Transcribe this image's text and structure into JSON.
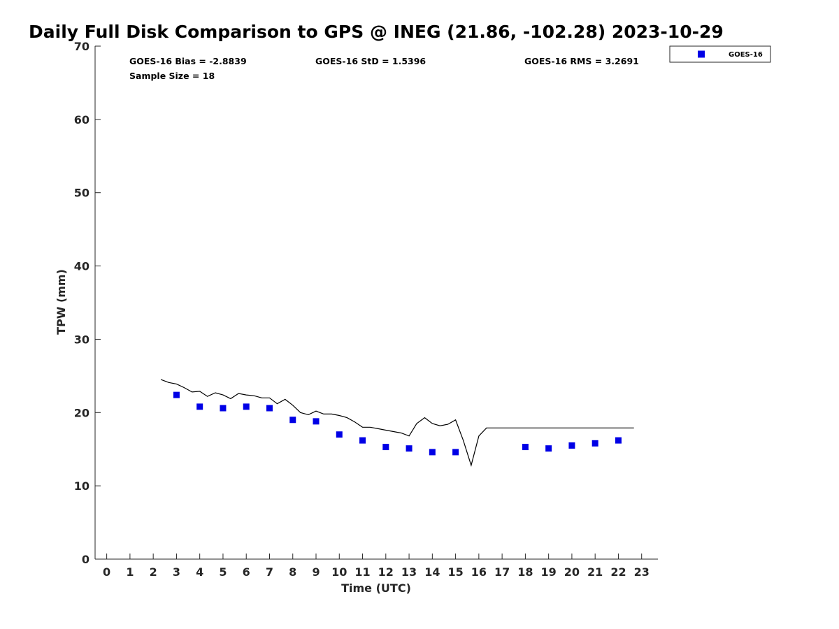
{
  "chart_data": {
    "type": "scatter",
    "title": "Daily Full Disk Comparison to GPS @ INEG (21.86, -102.28) 2023-10-29",
    "xlabel": "Time (UTC)",
    "ylabel": "TPW (mm)",
    "xlim": [
      -0.5,
      23.7
    ],
    "ylim": [
      0,
      70
    ],
    "xticks": [
      0,
      1,
      2,
      3,
      4,
      5,
      6,
      7,
      8,
      9,
      10,
      11,
      12,
      13,
      14,
      15,
      16,
      17,
      18,
      19,
      20,
      21,
      22,
      23
    ],
    "yticks": [
      0,
      10,
      20,
      30,
      40,
      50,
      60,
      70
    ],
    "grid": false,
    "legend_position": "top-right (outside plot)",
    "stats": {
      "bias": "GOES-16 Bias = -2.8839",
      "std": "GOES-16 StD = 1.5396",
      "rms": "GOES-16 RMS = 3.2691",
      "sample": "Sample Size = 18"
    },
    "series": [
      {
        "name": "GOES-16",
        "style": "markers",
        "marker": "square",
        "color": "#0000e6",
        "x": [
          3,
          4,
          5,
          6,
          7,
          8,
          9,
          10,
          11,
          12,
          13,
          14,
          15,
          18,
          19,
          20,
          21,
          22
        ],
        "y": [
          22.4,
          20.8,
          20.6,
          20.8,
          20.6,
          19.0,
          18.8,
          17.0,
          16.2,
          15.3,
          15.1,
          14.6,
          14.6,
          15.3,
          15.1,
          15.5,
          15.8,
          16.2
        ]
      },
      {
        "style": "line",
        "color": "#000000",
        "x": [
          2.33,
          2.67,
          3.0,
          3.33,
          3.67,
          4.0,
          4.33,
          4.67,
          5.0,
          5.33,
          5.67,
          6.0,
          6.33,
          6.67,
          7.0,
          7.33,
          7.67,
          8.0,
          8.33,
          8.67,
          9.0,
          9.33,
          9.67,
          10.0,
          10.33,
          10.67,
          11.0,
          11.33,
          11.67,
          12.0,
          12.33,
          12.67,
          13.0,
          13.33,
          13.67,
          14.0,
          14.33,
          14.67,
          15.0,
          15.33,
          15.67,
          16.0,
          16.33,
          16.67,
          17.0,
          17.33,
          17.67,
          18.0,
          18.33,
          18.67,
          19.0,
          19.33,
          19.67,
          20.0,
          20.33,
          20.67,
          21.0,
          21.33,
          21.67,
          22.0,
          22.33,
          22.67
        ],
        "y": [
          24.5,
          24.1,
          23.9,
          23.4,
          22.8,
          22.9,
          22.2,
          22.7,
          22.4,
          21.9,
          22.6,
          22.4,
          22.3,
          22.0,
          22.0,
          21.2,
          21.8,
          21.0,
          20.0,
          19.7,
          20.2,
          19.8,
          19.8,
          19.6,
          19.3,
          18.7,
          18.0,
          18.0,
          17.8,
          17.6,
          17.4,
          17.2,
          16.8,
          18.5,
          19.3,
          18.5,
          18.2,
          18.4,
          19.0,
          16.2,
          12.8,
          16.8,
          17.9,
          17.9,
          17.9,
          17.9,
          17.9,
          17.9,
          17.9,
          17.9,
          17.9,
          17.9,
          17.9,
          17.9,
          17.9,
          17.9,
          17.9,
          17.9,
          17.9,
          17.9,
          17.9,
          17.9
        ]
      }
    ]
  }
}
